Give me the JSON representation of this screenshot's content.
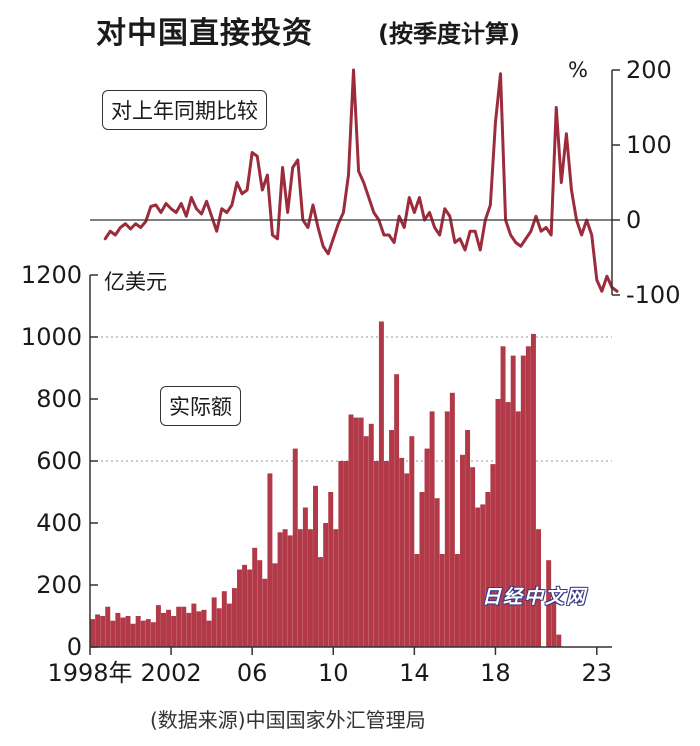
{
  "title": "对中国直接投资",
  "subtitle": "(按季度计算)",
  "source": "(数据来源)中国国家外汇管理局",
  "watermark": "日经中文网",
  "colors": {
    "bar": "#b23a48",
    "line": "#9c2c3c",
    "axis": "#333333",
    "grid": "#999999"
  },
  "chart_data": [
    {
      "type": "line",
      "label": "对上年同期比较",
      "unit": "%",
      "y_ticks": [
        -100,
        0,
        100,
        200
      ],
      "y_tick_labels": [
        "-100",
        "0",
        "100",
        "200"
      ],
      "ylim": [
        -100,
        200
      ],
      "axis_side": "right",
      "x_start": 1998.75,
      "x_step": 0.25,
      "values": [
        -25,
        -15,
        -20,
        -10,
        -5,
        -12,
        -5,
        -10,
        -2,
        18,
        20,
        10,
        22,
        15,
        10,
        22,
        5,
        30,
        15,
        8,
        25,
        5,
        -15,
        15,
        10,
        20,
        50,
        35,
        40,
        90,
        85,
        40,
        60,
        -20,
        -25,
        70,
        10,
        70,
        80,
        0,
        -10,
        20,
        -10,
        -35,
        -45,
        -25,
        -5,
        10,
        60,
        200,
        65,
        50,
        30,
        10,
        0,
        -20,
        -20,
        -30,
        5,
        -10,
        30,
        10,
        30,
        0,
        10,
        -10,
        -20,
        15,
        5,
        -30,
        -25,
        -40,
        -15,
        -15,
        -40,
        0,
        20,
        130,
        195,
        0,
        -20,
        -30,
        -35,
        -25,
        -15,
        5,
        -15,
        -10,
        -20,
        150,
        50,
        115,
        40,
        0,
        -20,
        0,
        -20,
        -80,
        -95,
        -75,
        -90,
        -95
      ]
    },
    {
      "type": "bar",
      "label": "实际额",
      "unit": "亿美元",
      "y_ticks": [
        0,
        200,
        400,
        600,
        800,
        1000,
        1200
      ],
      "y_tick_labels": [
        "0",
        "200",
        "400",
        "600",
        "800",
        "1000",
        "1200"
      ],
      "ylim": [
        0,
        1200
      ],
      "grid_values": [
        1000,
        600
      ],
      "x_start": 1998.125,
      "x_step": 0.25,
      "values": [
        90,
        105,
        100,
        130,
        85,
        110,
        95,
        100,
        75,
        100,
        85,
        90,
        80,
        135,
        110,
        120,
        100,
        130,
        130,
        110,
        140,
        115,
        120,
        85,
        160,
        125,
        180,
        140,
        190,
        250,
        265,
        250,
        320,
        280,
        220,
        560,
        270,
        370,
        380,
        360,
        640,
        380,
        450,
        380,
        520,
        290,
        400,
        500,
        380,
        600,
        600,
        750,
        740,
        740,
        680,
        720,
        600,
        1050,
        600,
        700,
        880,
        610,
        560,
        680,
        300,
        500,
        640,
        760,
        480,
        300,
        760,
        820,
        300,
        620,
        700,
        580,
        450,
        460,
        500,
        590,
        800,
        970,
        790,
        940,
        760,
        940,
        970,
        1010,
        380,
        0,
        280,
        150,
        40
      ],
      "x_tick_labels": [
        {
          "x": 1998,
          "label": "1998年"
        },
        {
          "x": 2002,
          "label": "2002"
        },
        {
          "x": 2006,
          "label": "06"
        },
        {
          "x": 2010,
          "label": "10"
        },
        {
          "x": 2014,
          "label": "14"
        },
        {
          "x": 2018,
          "label": "18"
        },
        {
          "x": 2023,
          "label": "23"
        }
      ]
    }
  ]
}
